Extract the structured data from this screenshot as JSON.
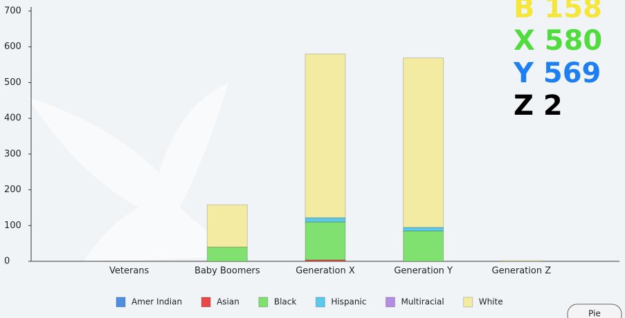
{
  "chart_data": {
    "type": "stacked-bar",
    "categories": [
      "Veterans",
      "Baby Boomers",
      "Generation X",
      "Generation Y",
      "Generation Z"
    ],
    "series": [
      {
        "name": "Amer Indian",
        "color": "#4f8fe0",
        "values": [
          0,
          0,
          0,
          0,
          0
        ]
      },
      {
        "name": "Asian",
        "color": "#e84848",
        "values": [
          0,
          0,
          4,
          0,
          0
        ]
      },
      {
        "name": "Black",
        "color": "#80e070",
        "values": [
          0,
          40,
          106,
          85,
          0
        ]
      },
      {
        "name": "Hispanic",
        "color": "#5cc8ea",
        "values": [
          0,
          0,
          12,
          10,
          0
        ]
      },
      {
        "name": "Multiracial",
        "color": "#b48ce0",
        "values": [
          0,
          0,
          0,
          0,
          0
        ]
      },
      {
        "name": "White",
        "color": "#f3eba2",
        "values": [
          0,
          118,
          458,
          474,
          2
        ]
      }
    ],
    "ylim": [
      0,
      700
    ],
    "yticks": [
      0,
      100,
      200,
      300,
      400,
      500,
      600,
      700
    ],
    "annotations": [
      {
        "text": "B 158",
        "color": "#f5e63a"
      },
      {
        "text": "X 580",
        "color": "#4fdc3c"
      },
      {
        "text": "Y 569",
        "color": "#1e7ff0"
      },
      {
        "text": "Z 2",
        "color": "#000000"
      }
    ],
    "button": "Pie"
  }
}
